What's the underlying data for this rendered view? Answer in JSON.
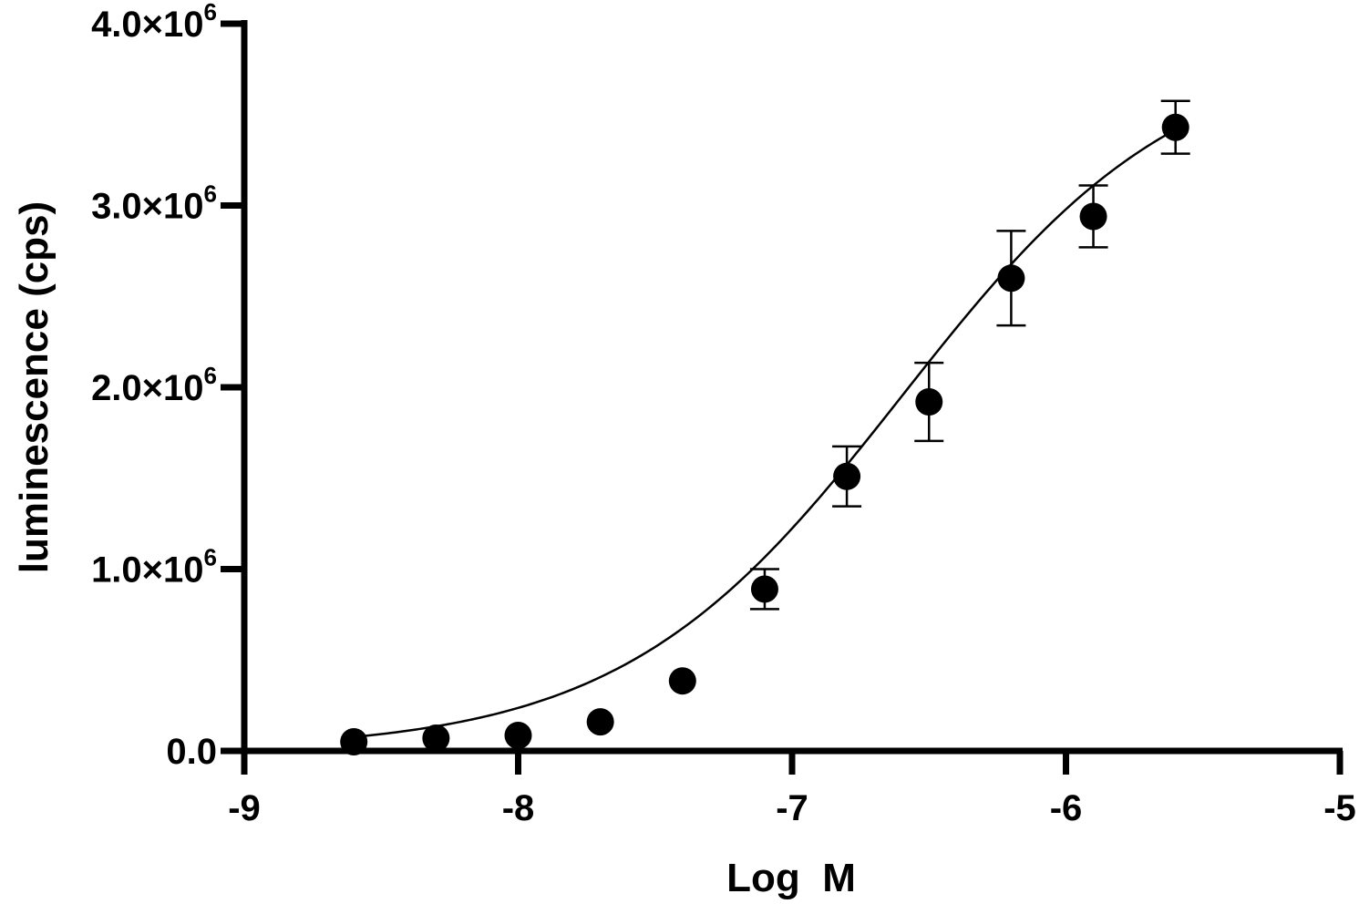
{
  "chart_data": {
    "type": "scatter",
    "title": "",
    "xlabel": "Log  M",
    "ylabel": "luminescence (cps)",
    "xlim": [
      -9,
      -5
    ],
    "ylim": [
      0,
      4000000
    ],
    "x_ticks": [
      -9,
      -8,
      -7,
      -6,
      -5
    ],
    "x_tick_labels": [
      "-9",
      "-8",
      "-7",
      "-6",
      "-5"
    ],
    "y_ticks": [
      0,
      1000000,
      2000000,
      3000000,
      4000000
    ],
    "y_tick_labels": [
      {
        "mantissa": "0.0",
        "exponent": ""
      },
      {
        "mantissa": "1.0×10",
        "exponent": "6"
      },
      {
        "mantissa": "2.0×10",
        "exponent": "6"
      },
      {
        "mantissa": "3.0×10",
        "exponent": "6"
      },
      {
        "mantissa": "4.0×10",
        "exponent": "6"
      }
    ],
    "grid": false,
    "legend": "none",
    "points": [
      {
        "x": -8.6,
        "y": 50000,
        "err": 0
      },
      {
        "x": -8.3,
        "y": 70000,
        "err": 0
      },
      {
        "x": -8.0,
        "y": 85000,
        "err": 0
      },
      {
        "x": -7.7,
        "y": 160000,
        "err": 0
      },
      {
        "x": -7.4,
        "y": 385000,
        "err": 0
      },
      {
        "x": -7.1,
        "y": 890000,
        "err": 110000
      },
      {
        "x": -6.8,
        "y": 1510000,
        "err": 165000
      },
      {
        "x": -6.5,
        "y": 1920000,
        "err": 215000
      },
      {
        "x": -6.2,
        "y": 2600000,
        "err": 260000
      },
      {
        "x": -5.9,
        "y": 2940000,
        "err": 170000
      },
      {
        "x": -5.6,
        "y": 3430000,
        "err": 145000
      }
    ],
    "fit": {
      "model": "four-parameter logistic",
      "bottom": 0,
      "top": 3900000,
      "log_ec50": -6.6,
      "hill_slope": 0.85,
      "x_range": [
        -8.6,
        -5.6
      ]
    },
    "colors": {
      "axis": "#000000",
      "marker": "#000000",
      "curve": "#000000"
    }
  }
}
